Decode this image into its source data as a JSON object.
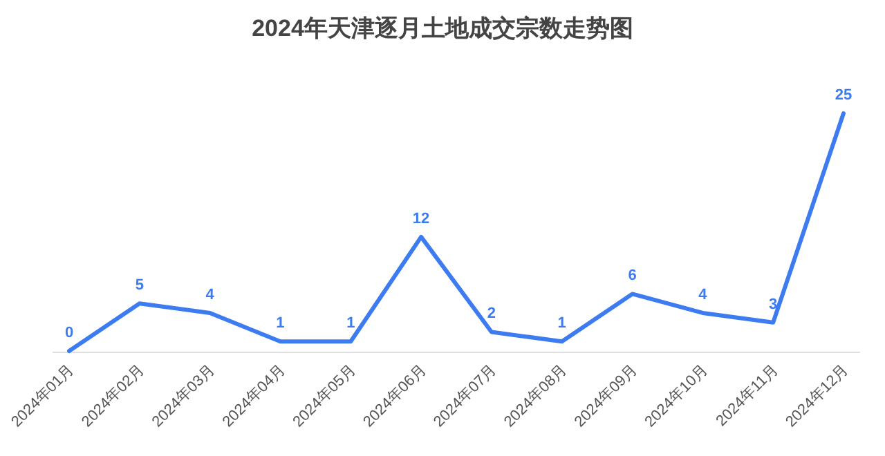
{
  "chart_data": {
    "type": "line",
    "title": "2024年天津逐月土地成交宗数走势图",
    "categories": [
      "2024年01月",
      "2024年02月",
      "2024年03月",
      "2024年04月",
      "2024年05月",
      "2024年06月",
      "2024年07月",
      "2024年08月",
      "2024年09月",
      "2024年10月",
      "2024年11月",
      "2024年12月"
    ],
    "series": [
      {
        "color": "#3d7bf0",
        "values": [
          0,
          5,
          4,
          1,
          1,
          12,
          2,
          1,
          6,
          4,
          3,
          25
        ]
      }
    ],
    "data_labels": true,
    "grid": false,
    "marker": "none",
    "line_style": "solid",
    "tick_labels": "x"
  }
}
